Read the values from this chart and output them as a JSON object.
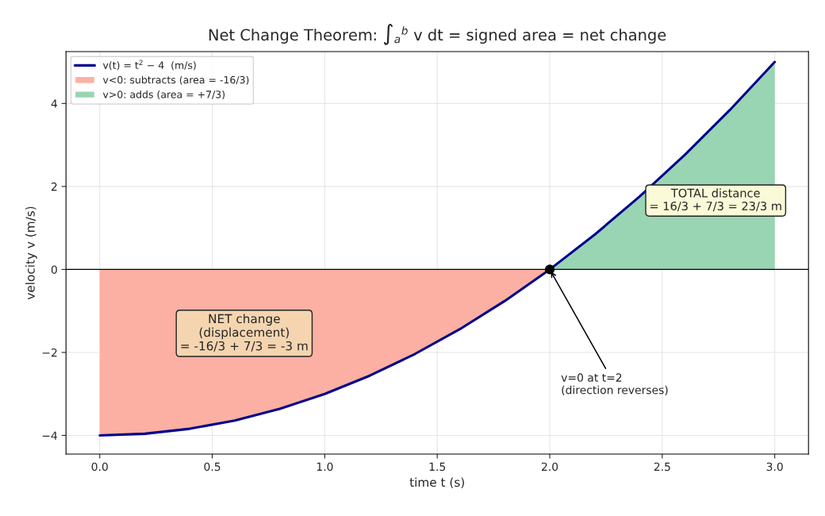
{
  "chart_data": {
    "type": "line",
    "title": "Net Change Theorem: ∫$_{a}$$^{b}$ v dt = signed area = net change",
    "xlabel": "time t (s)",
    "ylabel": "velocity v (m/s)",
    "series": [
      {
        "name": "v(t) = t$^{2}$ − 4  (m/s)",
        "color": "#00008b",
        "x": [
          0,
          0.2,
          0.4,
          0.6,
          0.8,
          1.0,
          1.2,
          1.4,
          1.6,
          1.8,
          2.0,
          2.2,
          2.4,
          2.6,
          2.8,
          3.0
        ],
        "values": [
          -4,
          -3.96,
          -3.84,
          -3.64,
          -3.36,
          -3,
          -2.56,
          -2.04,
          -1.44,
          -0.76,
          0,
          0.84,
          1.76,
          2.76,
          3.84,
          5
        ]
      },
      {
        "name": "v<0: subtracts (area = -16/3)",
        "type": "area",
        "color": "#fcb0a3",
        "x": [
          0,
          0.25,
          0.5,
          0.75,
          1.0,
          1.25,
          1.5,
          1.75,
          2.0
        ],
        "values": [
          -4,
          -3.94,
          -3.75,
          -3.44,
          -3,
          -2.44,
          -1.75,
          -0.94,
          0
        ]
      },
      {
        "name": "v>0: adds (area = +7/3)",
        "type": "area",
        "color": "#99d5b3",
        "x": [
          2.0,
          2.25,
          2.5,
          2.75,
          3.0
        ],
        "values": [
          0,
          1.06,
          2.25,
          3.56,
          5
        ]
      },
      {
        "type": "scatter",
        "color": "#000000",
        "marker": "circle",
        "x": [
          2.0
        ],
        "values": [
          0
        ]
      }
    ],
    "xlim": [
      -0.15,
      3.15
    ],
    "ylim": [
      -4.45,
      5.25
    ],
    "xticks": [
      {
        "value": 0,
        "label": "0.0"
      },
      {
        "value": 0.5,
        "label": "0.5"
      },
      {
        "value": 1,
        "label": "1.0"
      },
      {
        "value": 1.5,
        "label": "1.5"
      },
      {
        "value": 2,
        "label": "2.0"
      },
      {
        "value": 2.5,
        "label": "2.5"
      },
      {
        "value": 3,
        "label": "3.0"
      }
    ],
    "yticks": [
      {
        "value": -4,
        "label": "−4"
      },
      {
        "value": -2,
        "label": "−2"
      },
      0,
      2,
      4
    ],
    "ref_lines": [
      {
        "axis": "y",
        "value": 0,
        "color": "#000000"
      }
    ],
    "grid": true,
    "legend": "top left",
    "annotations": [
      {
        "text": "v=0 at t=2\n(direction reverses)",
        "x": 2.0,
        "y": 0
      },
      "NET change\n(displacement)\n= -16/3 + 7/3 = -3 m",
      "TOTAL distance\n= 16/3 + 7/3 = 23/3 m"
    ]
  }
}
